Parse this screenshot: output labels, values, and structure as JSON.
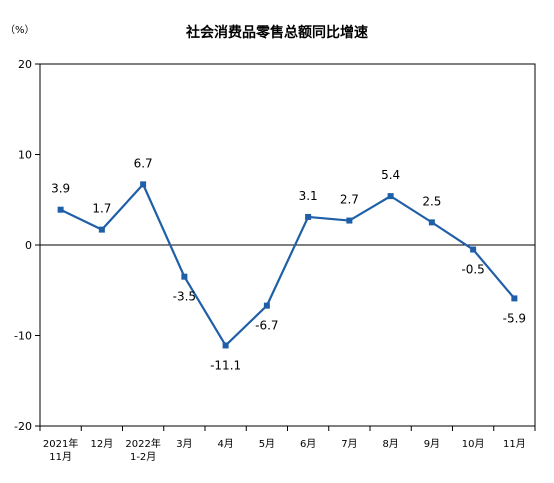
{
  "chart_data": {
    "type": "line",
    "title": "社会消费品零售总额同比增速",
    "unit_label": "（%）",
    "xlabel": "",
    "ylabel": "",
    "categories": [
      [
        "2021年",
        "11月"
      ],
      [
        "12月"
      ],
      [
        "2022年",
        "1-2月"
      ],
      [
        "3月"
      ],
      [
        "4月"
      ],
      [
        "5月"
      ],
      [
        "6月"
      ],
      [
        "7月"
      ],
      [
        "8月"
      ],
      [
        "9月"
      ],
      [
        "10月"
      ],
      [
        "11月"
      ]
    ],
    "series": [
      {
        "values": [
          3.9,
          1.7,
          6.7,
          -3.5,
          -11.1,
          -6.7,
          3.1,
          2.7,
          5.4,
          2.5,
          -0.5,
          -5.9
        ],
        "labels": [
          "3.9",
          "1.7",
          "6.7",
          "-3.5",
          "-11.1",
          "-6.7",
          "3.1",
          "2.7",
          "5.4",
          "2.5",
          "-0.5",
          "-5.9"
        ],
        "label_positions": [
          "above",
          "above",
          "above",
          "below",
          "below",
          "below",
          "above",
          "above",
          "above",
          "above",
          "below",
          "below"
        ]
      }
    ],
    "ylim": [
      -20,
      20
    ],
    "yticks": [
      -20,
      -10,
      0,
      10,
      20
    ],
    "grid": false,
    "zero_line": true,
    "line_color": "#1f5fa8"
  }
}
